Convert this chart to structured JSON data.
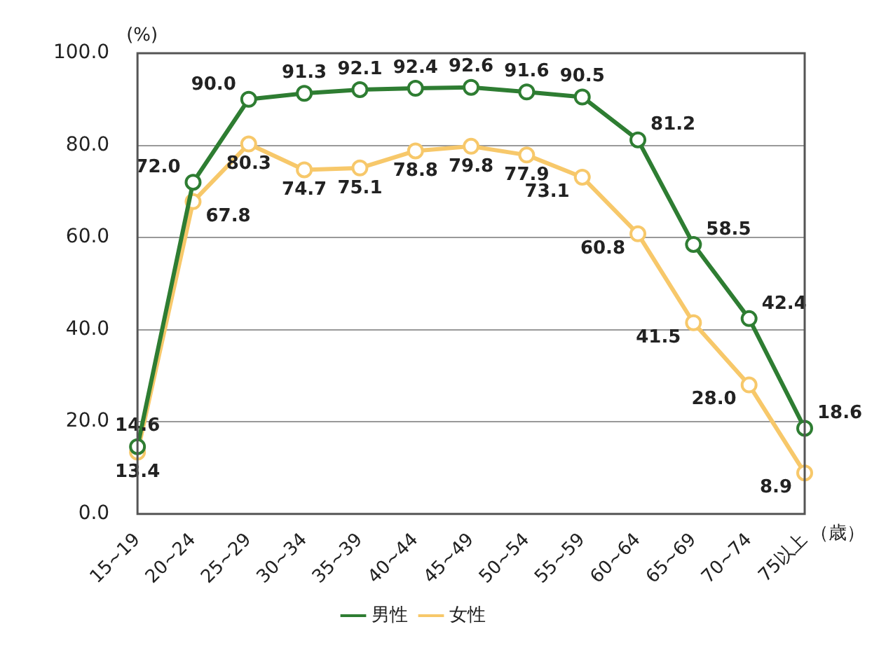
{
  "chart_data": {
    "type": "line",
    "ylabel": "(%)",
    "xlabel": "（歳）",
    "categories": [
      "15~19",
      "20~24",
      "25~29",
      "30~34",
      "35~39",
      "40~44",
      "45~49",
      "50~54",
      "55~59",
      "60~64",
      "65~69",
      "70~74",
      "75以上"
    ],
    "series": [
      {
        "name": "男性",
        "color": "#2e7d32",
        "values": [
          14.6,
          72.0,
          90.0,
          91.3,
          92.1,
          92.4,
          92.6,
          91.6,
          90.5,
          81.2,
          58.5,
          42.4,
          18.6
        ],
        "value_labels": [
          "14.6",
          "72.0",
          "90.0",
          "91.3",
          "92.1",
          "92.4",
          "92.6",
          "91.6",
          "90.5",
          "81.2",
          "58.5",
          "42.4",
          "18.6"
        ]
      },
      {
        "name": "女性",
        "color": "#f7c86a",
        "values": [
          13.4,
          67.8,
          80.3,
          74.7,
          75.1,
          78.8,
          79.8,
          77.9,
          73.1,
          60.8,
          41.5,
          28.0,
          8.9
        ],
        "value_labels": [
          "13.4",
          "67.8",
          "80.3",
          "74.7",
          "75.1",
          "78.8",
          "79.8",
          "77.9",
          "73.1",
          "60.8",
          "41.5",
          "28.0",
          "8.9"
        ]
      }
    ],
    "ylim": [
      0,
      100
    ],
    "yticks": [
      {
        "value": 0,
        "label": "0.0"
      },
      {
        "value": 20,
        "label": "20.0"
      },
      {
        "value": 40,
        "label": "40.0"
      },
      {
        "value": 60,
        "label": "60.0"
      },
      {
        "value": 80,
        "label": "80.0"
      },
      {
        "value": 100,
        "label": "100.0"
      }
    ],
    "grid": "y",
    "legend": "bottom",
    "marker": "circle",
    "line_style": "solid"
  }
}
